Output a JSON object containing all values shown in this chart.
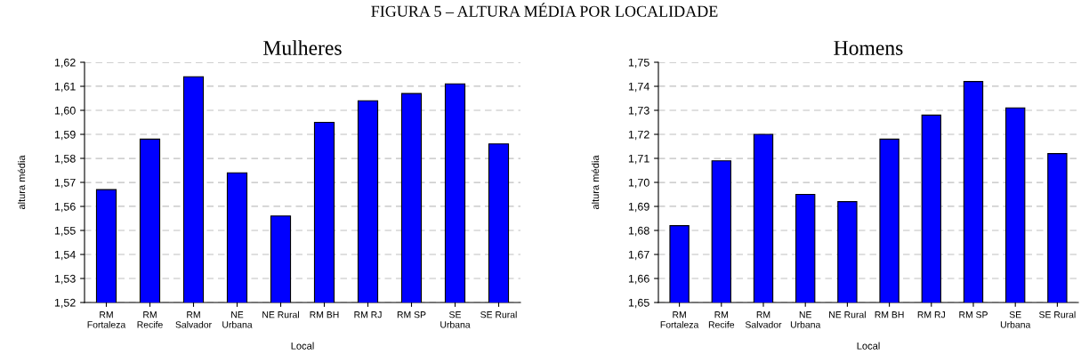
{
  "chart_data": [
    {
      "type": "bar",
      "title": "Mulheres",
      "annotations": [
        "FIGURA 5 – ALTURA MÉDIA POR LOCALIDADE"
      ],
      "xlabel": "Local",
      "ylabel": "altura média",
      "categories": [
        "RM\nFortaleza",
        "RM\nRecife",
        "RM\nSalvador",
        "NE\nUrbana",
        "NE Rural",
        "RM BH",
        "RM RJ",
        "RM SP",
        "SE\nUrbana",
        "SE Rural"
      ],
      "values": [
        1.567,
        1.588,
        1.614,
        1.574,
        1.556,
        1.595,
        1.604,
        1.607,
        1.611,
        1.586
      ],
      "color": "#0000ff",
      "ylim": [
        1.52,
        1.62
      ],
      "yticks": [
        {
          "value": 1.52,
          "label": "1,52"
        },
        {
          "value": 1.53,
          "label": "1,53"
        },
        {
          "value": 1.54,
          "label": "1,54"
        },
        {
          "value": 1.55,
          "label": "1,55"
        },
        {
          "value": 1.56,
          "label": "1,56"
        },
        {
          "value": 1.57,
          "label": "1,57"
        },
        {
          "value": 1.58,
          "label": "1,58"
        },
        {
          "value": 1.59,
          "label": "1,59"
        },
        {
          "value": 1.6,
          "label": "1,60"
        },
        {
          "value": 1.61,
          "label": "1,61"
        },
        {
          "value": 1.62,
          "label": "1,62"
        }
      ],
      "grid": "y",
      "legend": false
    },
    {
      "type": "bar",
      "title": "Homens",
      "xlabel": "Local",
      "ylabel": "altura média",
      "categories": [
        "RM\nFortaleza",
        "RM\nRecife",
        "RM\nSalvador",
        "NE\nUrbana",
        "NE Rural",
        "RM BH",
        "RM RJ",
        "RM SP",
        "SE\nUrbana",
        "SE Rural"
      ],
      "values": [
        1.682,
        1.709,
        1.72,
        1.695,
        1.692,
        1.718,
        1.728,
        1.742,
        1.731,
        1.712
      ],
      "color": "#0000ff",
      "ylim": [
        1.65,
        1.75
      ],
      "yticks": [
        {
          "value": 1.65,
          "label": "1,65"
        },
        {
          "value": 1.66,
          "label": "1,66"
        },
        {
          "value": 1.67,
          "label": "1,67"
        },
        {
          "value": 1.68,
          "label": "1,68"
        },
        {
          "value": 1.69,
          "label": "1,69"
        },
        {
          "value": 1.7,
          "label": "1,70"
        },
        {
          "value": 1.71,
          "label": "1,71"
        },
        {
          "value": 1.72,
          "label": "1,72"
        },
        {
          "value": 1.73,
          "label": "1,73"
        },
        {
          "value": 1.74,
          "label": "1,74"
        },
        {
          "value": 1.75,
          "label": "1,75"
        }
      ],
      "grid": "y",
      "legend": false
    }
  ]
}
